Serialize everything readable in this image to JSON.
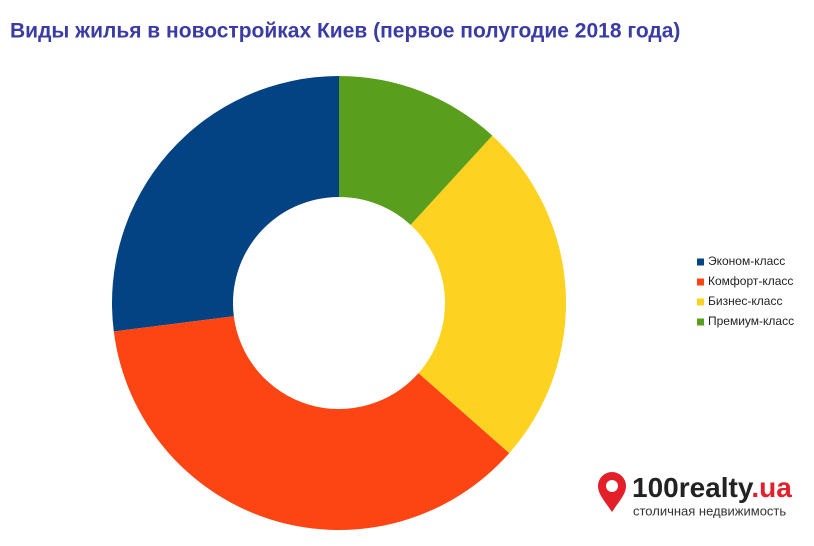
{
  "chart_data": {
    "type": "donut",
    "title": "Виды жилья в новостройках Киев (первое полугодие 2018 года)",
    "categories": [
      "Эконом-класс",
      "Комфорт-класс",
      "Бизнес-класс",
      "Премиум-класс"
    ],
    "values": [
      27,
      36.5,
      24.7,
      11.8
    ],
    "colors": [
      "#034283",
      "#fc4512",
      "#fdd220",
      "#5a9e1d"
    ],
    "legend": "right"
  },
  "logo": {
    "name": "100realty",
    "domain": ".ua",
    "tagline": "столичная недвижимость"
  }
}
